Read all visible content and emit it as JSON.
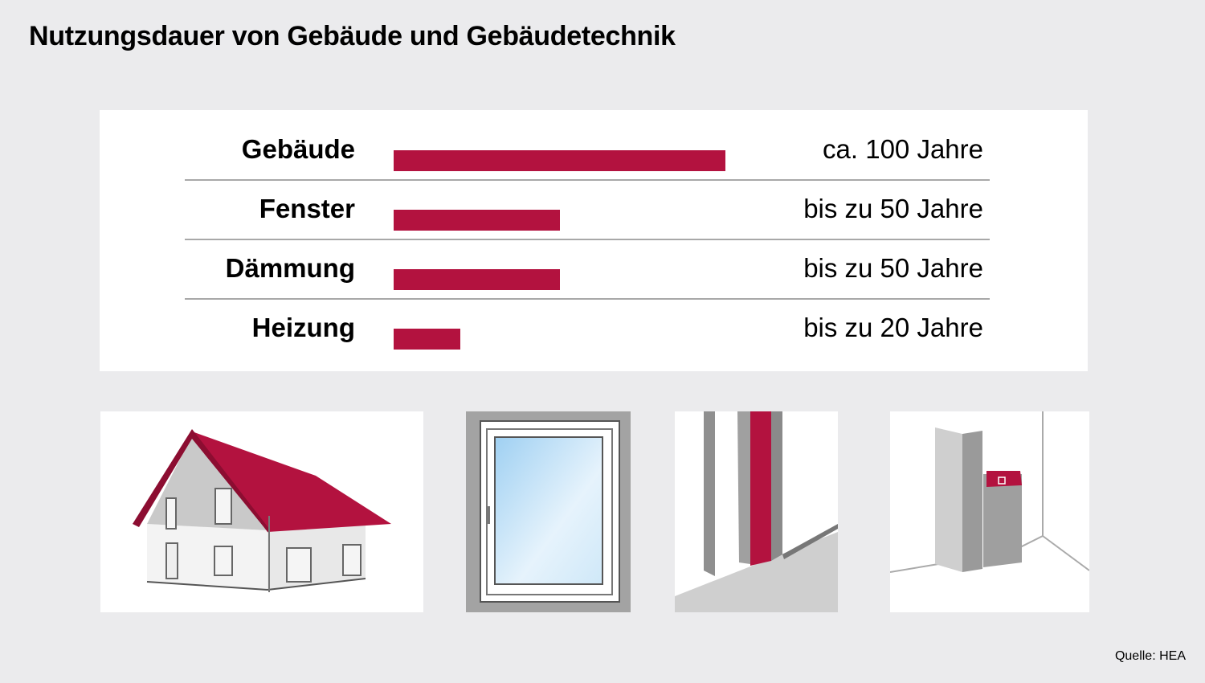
{
  "title": "Nutzungsdauer von Gebäude und Gebäudetechnik",
  "source": "Quelle: HEA",
  "colors": {
    "bar": "#b3123f",
    "background": "#ebebed",
    "panel": "#ffffff"
  },
  "chart_data": {
    "type": "bar",
    "orientation": "horizontal",
    "title": "Nutzungsdauer von Gebäude und Gebäudetechnik",
    "categories": [
      "Gebäude",
      "Fenster",
      "Dämmung",
      "Heizung"
    ],
    "values": [
      100,
      50,
      50,
      20
    ],
    "value_labels": [
      "ca. 100 Jahre",
      "bis zu 50 Jahre",
      "bis zu 50 Jahre",
      "bis zu 20 Jahre"
    ],
    "xlim": [
      0,
      100
    ],
    "grid": false
  },
  "illustrations": [
    "house-icon",
    "window-icon",
    "insulation-icon",
    "heating-icon"
  ]
}
